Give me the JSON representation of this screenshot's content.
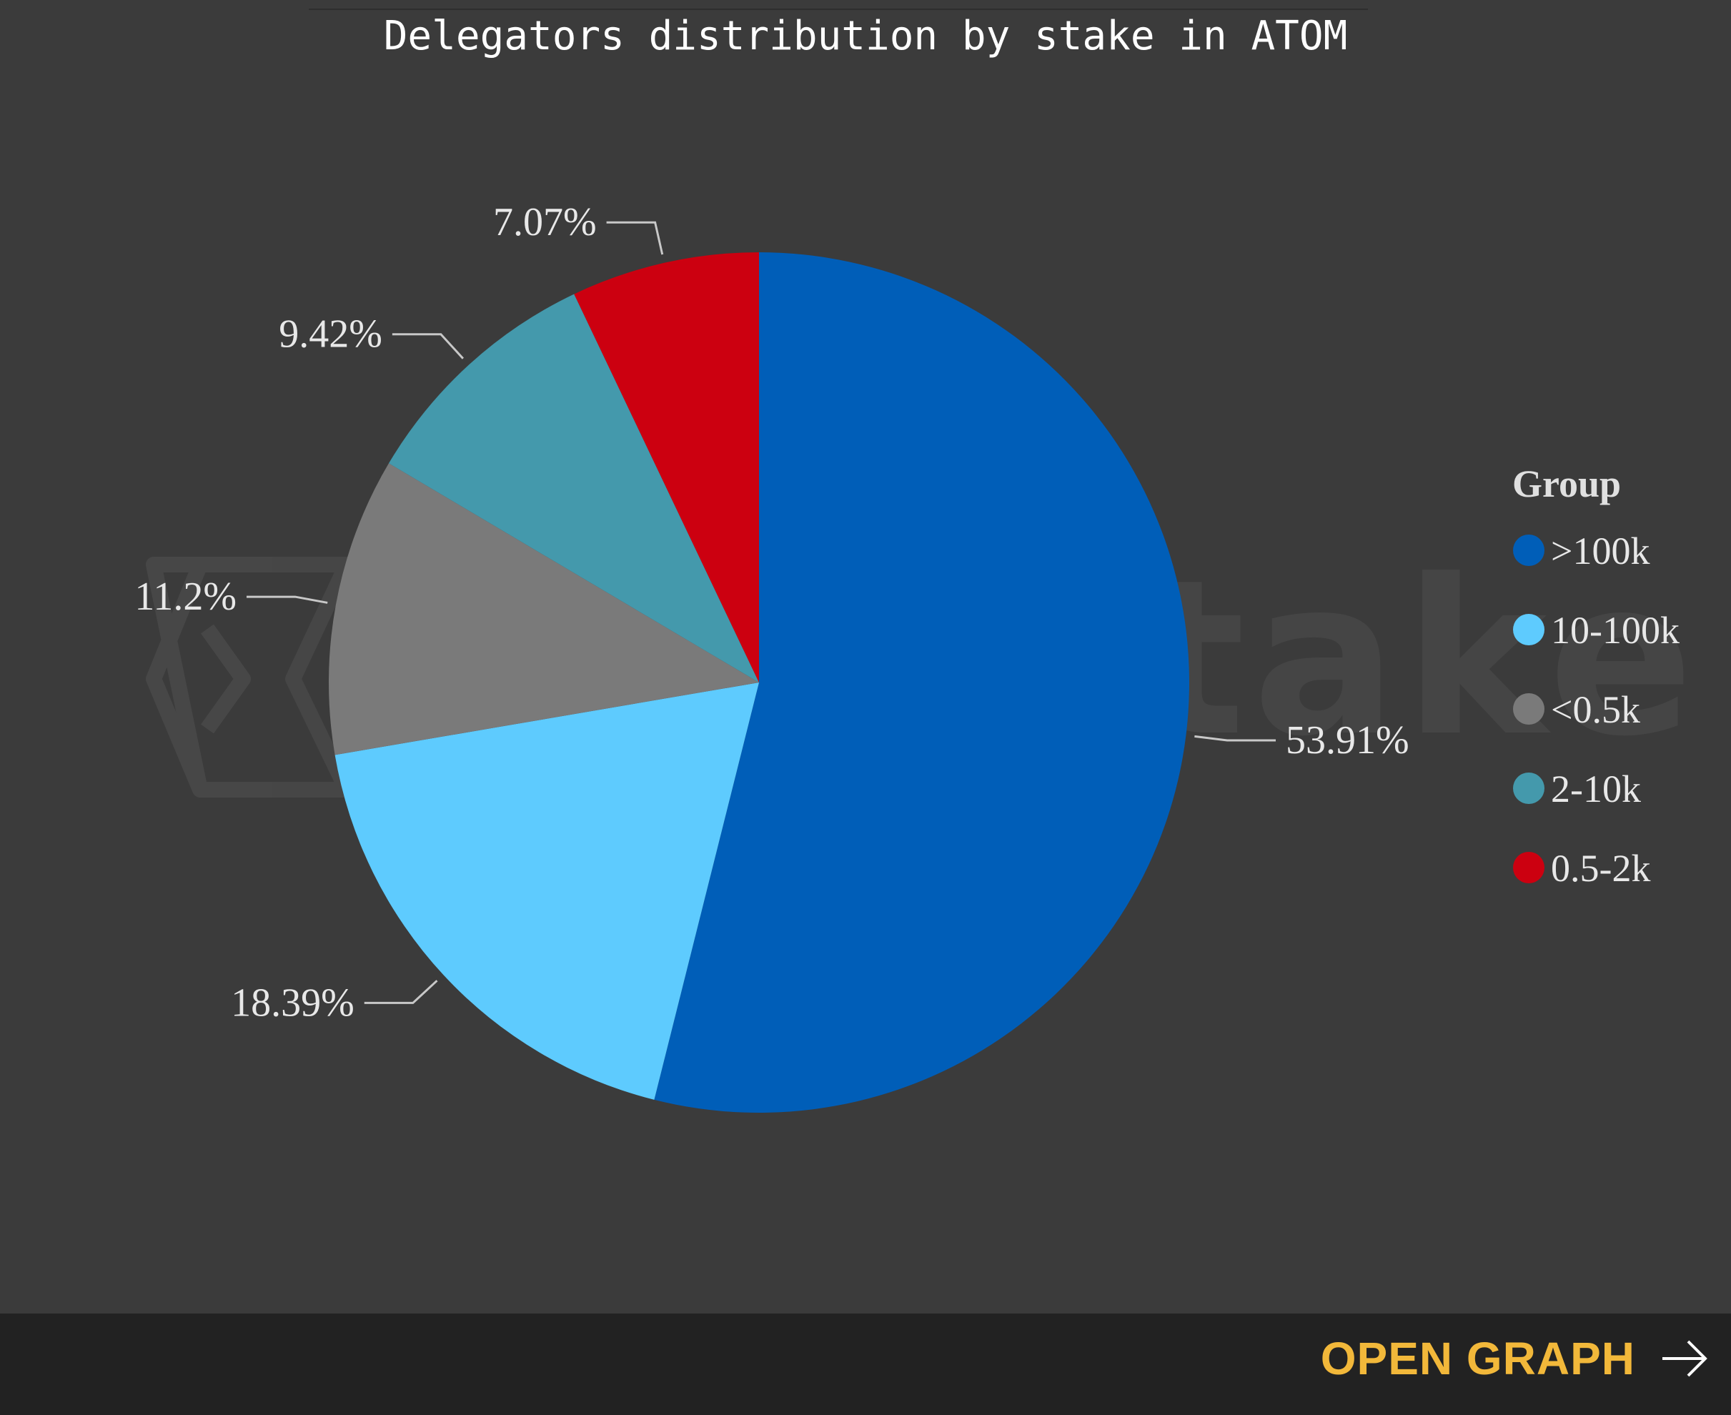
{
  "title": "Delegators distribution by stake in ATOM",
  "watermark": "everstake",
  "footer": {
    "open_graph_label": "OPEN GRAPH",
    "arrow_icon": "arrow-right-icon"
  },
  "chart_data": {
    "type": "pie",
    "title": "Delegators distribution by stake in ATOM",
    "legend_title": "Group",
    "legend_position": "right",
    "slices": [
      {
        "label": ">100k",
        "value": 53.91,
        "display": "53.91%",
        "color": "#005eb8"
      },
      {
        "label": "10-100k",
        "value": 18.39,
        "display": "18.39%",
        "color": "#5ecbfe"
      },
      {
        "label": "<0.5k",
        "value": 11.2,
        "display": "11.2%",
        "color": "#7a7a7a"
      },
      {
        "label": "2-10k",
        "value": 9.42,
        "display": "9.42%",
        "color": "#4499ac"
      },
      {
        "label": "0.5-2k",
        "value": 7.07,
        "display": "7.07%",
        "color": "#cc0010"
      }
    ]
  }
}
